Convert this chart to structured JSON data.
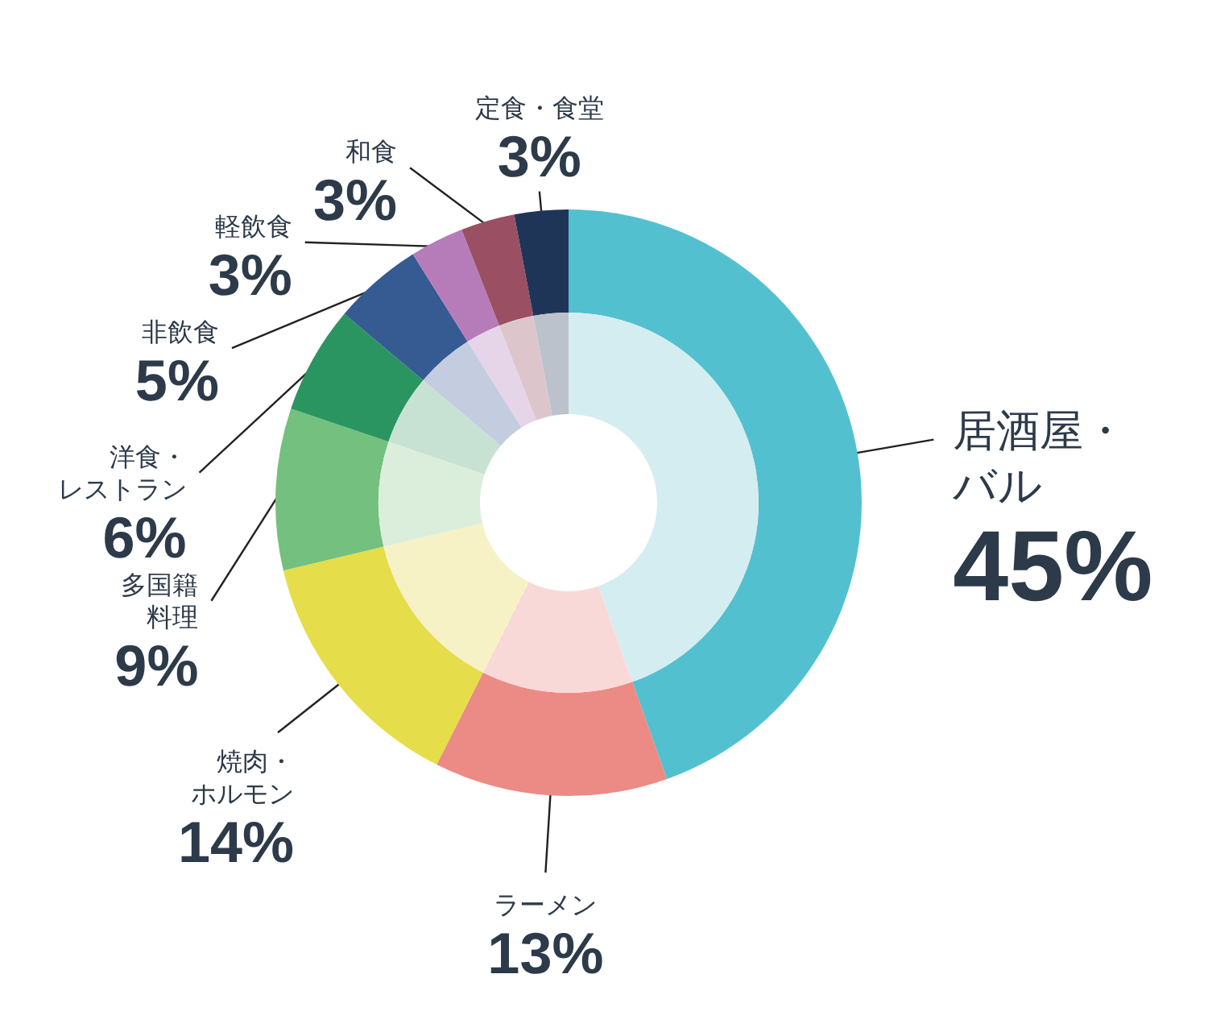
{
  "chart_data": {
    "type": "donut",
    "categories": [
      "居酒屋・バル",
      "ラーメン",
      "焼肉・ホルモン",
      "多国籍料理",
      "洋食・レストラン",
      "非飲食",
      "軽飲食",
      "和食",
      "定食・食堂"
    ],
    "series": [
      {
        "values": [
          45,
          13,
          14,
          9,
          6,
          5,
          3,
          3,
          3
        ],
        "colors": [
          "#53c0d0",
          "#ec8a85",
          "#e6dd4a",
          "#74c07e",
          "#2a9560",
          "#365a92",
          "#b57cb9",
          "#9a4f63",
          "#1f3557"
        ]
      },
      {
        "values": [
          45,
          13,
          14,
          9,
          6,
          5,
          3,
          3,
          3
        ],
        "colors": [
          "#d4edf1",
          "#f9d9d7",
          "#f6f2c6",
          "#dbeedb",
          "#c7e2d2",
          "#c4cce0",
          "#e6d4e8",
          "#dcc6cc",
          "#bcc2cc"
        ]
      }
    ],
    "value_labels": [
      "45%",
      "13%",
      "14%",
      "9%",
      "6%",
      "5%",
      "3%",
      "3%",
      "3%"
    ],
    "legend": false
  }
}
